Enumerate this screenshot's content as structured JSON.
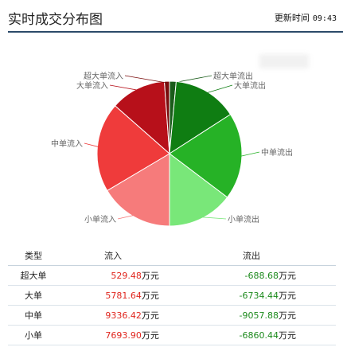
{
  "header": {
    "title": "实时成交分布图",
    "update_label": "更新时间",
    "update_time": "09:43"
  },
  "chart_data": {
    "type": "pie",
    "unit": "万元",
    "slices": [
      {
        "label": "超大单流出",
        "value": 688.68,
        "color": "#1a5c1a"
      },
      {
        "label": "大单流出",
        "value": 6734.44,
        "color": "#0f7d12"
      },
      {
        "label": "中单流出",
        "value": 9057.88,
        "color": "#26b226"
      },
      {
        "label": "小单流出",
        "value": 6860.44,
        "color": "#79e779"
      },
      {
        "label": "小单流入",
        "value": 7693.9,
        "color": "#f67b7b"
      },
      {
        "label": "中单流入",
        "value": 9336.42,
        "color": "#ef3b3b"
      },
      {
        "label": "大单流入",
        "value": 5781.64,
        "color": "#b7101a"
      },
      {
        "label": "超大单流入",
        "value": 529.48,
        "color": "#7a0c0c"
      }
    ]
  },
  "table": {
    "headers": [
      "类型",
      "流入",
      "流出"
    ],
    "unit": "万元",
    "rows": [
      {
        "type": "超大单",
        "inflow": "529.48",
        "outflow": "-688.68"
      },
      {
        "type": "大单",
        "inflow": "5781.64",
        "outflow": "-6734.44"
      },
      {
        "type": "中单",
        "inflow": "9336.42",
        "outflow": "-9057.88"
      },
      {
        "type": "小单",
        "inflow": "7693.90",
        "outflow": "-6860.44"
      }
    ]
  }
}
